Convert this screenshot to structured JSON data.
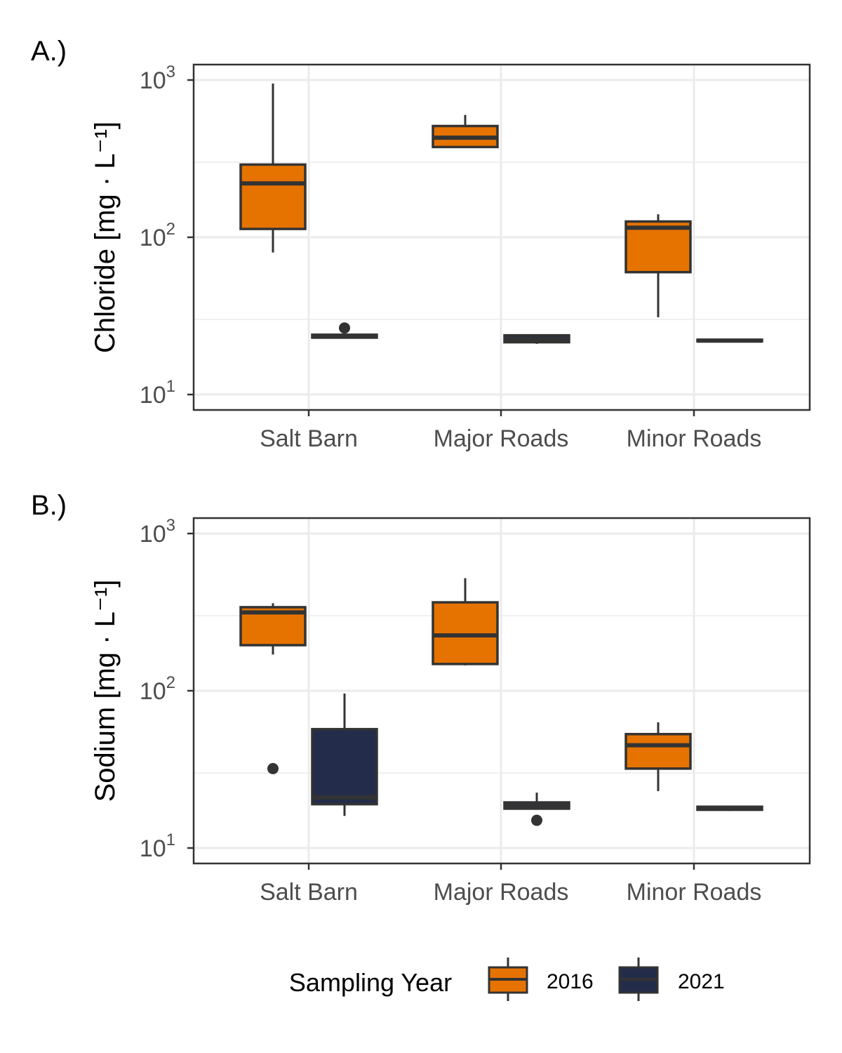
{
  "chart_data": [
    {
      "type": "box",
      "panel_tag": "A.)",
      "ylabel": "Chloride [mg · L⁻¹]",
      "yscale": "log",
      "ylim": [
        10,
        1000
      ],
      "y_ticks": [
        {
          "value": 10,
          "label": "10",
          "exp": "1"
        },
        {
          "value": 100,
          "label": "10",
          "exp": "2"
        },
        {
          "value": 1000,
          "label": "10",
          "exp": "3"
        }
      ],
      "categories": [
        "Salt Barn",
        "Major Roads",
        "Minor Roads"
      ],
      "grid": true,
      "series": [
        {
          "name": "2016",
          "color": "#e67300",
          "boxes": [
            {
              "category": "Salt Barn",
              "lower": 80,
              "q1": 113,
              "median": 220,
              "q3": 290,
              "upper": 950,
              "outliers": []
            },
            {
              "category": "Major Roads",
              "lower": 375,
              "q1": 375,
              "median": 430,
              "q3": 510,
              "upper": 600,
              "outliers": []
            },
            {
              "category": "Minor Roads",
              "lower": 31,
              "q1": 60,
              "median": 115,
              "q3": 126,
              "upper": 140,
              "outliers": []
            }
          ]
        },
        {
          "name": "2021",
          "color": "#232c4a",
          "boxes": [
            {
              "category": "Salt Barn",
              "lower": 23,
              "q1": 23,
              "median": 23.5,
              "q3": 24,
              "upper": 24,
              "outliers": [
                26.5
              ]
            },
            {
              "category": "Major Roads",
              "lower": 21,
              "q1": 21.5,
              "median": 22.5,
              "q3": 23.8,
              "upper": 24,
              "outliers": []
            },
            {
              "category": "Minor Roads",
              "lower": 21.5,
              "q1": 21.8,
              "median": 22,
              "q3": 22.3,
              "upper": 22.5,
              "outliers": []
            }
          ]
        }
      ]
    },
    {
      "type": "box",
      "panel_tag": "B.)",
      "ylabel": "Sodium [mg · L⁻¹]",
      "yscale": "log",
      "ylim": [
        10,
        1000
      ],
      "y_ticks": [
        {
          "value": 10,
          "label": "10",
          "exp": "1"
        },
        {
          "value": 100,
          "label": "10",
          "exp": "2"
        },
        {
          "value": 1000,
          "label": "10",
          "exp": "3"
        }
      ],
      "categories": [
        "Salt Barn",
        "Major Roads",
        "Minor Roads"
      ],
      "grid": true,
      "series": [
        {
          "name": "2016",
          "color": "#e67300",
          "boxes": [
            {
              "category": "Salt Barn",
              "lower": 170,
              "q1": 195,
              "median": 315,
              "q3": 340,
              "upper": 360,
              "outliers": [
                32
              ]
            },
            {
              "category": "Major Roads",
              "lower": 145,
              "q1": 148,
              "median": 225,
              "q3": 365,
              "upper": 520,
              "outliers": []
            },
            {
              "category": "Minor Roads",
              "lower": 23,
              "q1": 32,
              "median": 45,
              "q3": 53,
              "upper": 63,
              "outliers": []
            }
          ]
        },
        {
          "name": "2021",
          "color": "#232c4a",
          "boxes": [
            {
              "category": "Salt Barn",
              "lower": 16,
              "q1": 19,
              "median": 21,
              "q3": 57,
              "upper": 96,
              "outliers": []
            },
            {
              "category": "Major Roads",
              "lower": 17.5,
              "q1": 17.8,
              "median": 18.5,
              "q3": 19.5,
              "upper": 22.5,
              "outliers": [
                15
              ]
            },
            {
              "category": "Minor Roads",
              "lower": 17.2,
              "q1": 17.5,
              "median": 17.9,
              "q3": 18.3,
              "upper": 18.5,
              "outliers": []
            }
          ]
        }
      ]
    }
  ],
  "legend": {
    "title": "Sampling Year",
    "position": "bottom",
    "items": [
      {
        "label": "2016",
        "color": "#e67300"
      },
      {
        "label": "2021",
        "color": "#232c4a"
      }
    ]
  }
}
